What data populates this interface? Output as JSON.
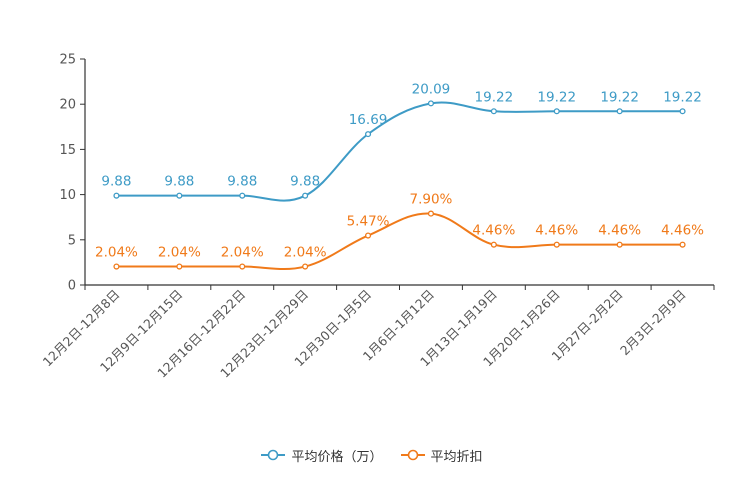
{
  "colors": {
    "series1": "#3e9bc6",
    "series2": "#f07a1a",
    "axis": "#333333",
    "text": "#555555"
  },
  "chart_data": {
    "type": "line",
    "title": "",
    "xlabel": "",
    "ylabel": "",
    "ylim": [
      0,
      25
    ],
    "yticks": [
      0,
      5,
      10,
      15,
      20,
      25
    ],
    "grid": false,
    "legend_position": "bottom-center",
    "categories": [
      "12月2日-12月8日",
      "12月9日-12月15日",
      "12月16日-12月22日",
      "12月23日-12月29日",
      "12月30日-1月5日",
      "1月6日-1月12日",
      "1月13日-1月19日",
      "1月20日-1月26日",
      "1月27日-2月2日",
      "2月3日-2月9日"
    ],
    "series": [
      {
        "name": "平均价格（万）",
        "values": [
          9.88,
          9.88,
          9.88,
          9.88,
          16.69,
          20.09,
          19.22,
          19.22,
          19.22,
          19.22
        ],
        "labels": [
          "9.88",
          "9.88",
          "9.88",
          "9.88",
          "16.69",
          "20.09",
          "19.22",
          "19.22",
          "19.22",
          "19.22"
        ]
      },
      {
        "name": "平均折扣",
        "values": [
          2.04,
          2.04,
          2.04,
          2.04,
          5.47,
          7.9,
          4.46,
          4.46,
          4.46,
          4.46
        ],
        "labels": [
          "2.04%",
          "2.04%",
          "2.04%",
          "2.04%",
          "5.47%",
          "7.90%",
          "4.46%",
          "4.46%",
          "4.46%",
          "4.46%"
        ]
      }
    ]
  }
}
